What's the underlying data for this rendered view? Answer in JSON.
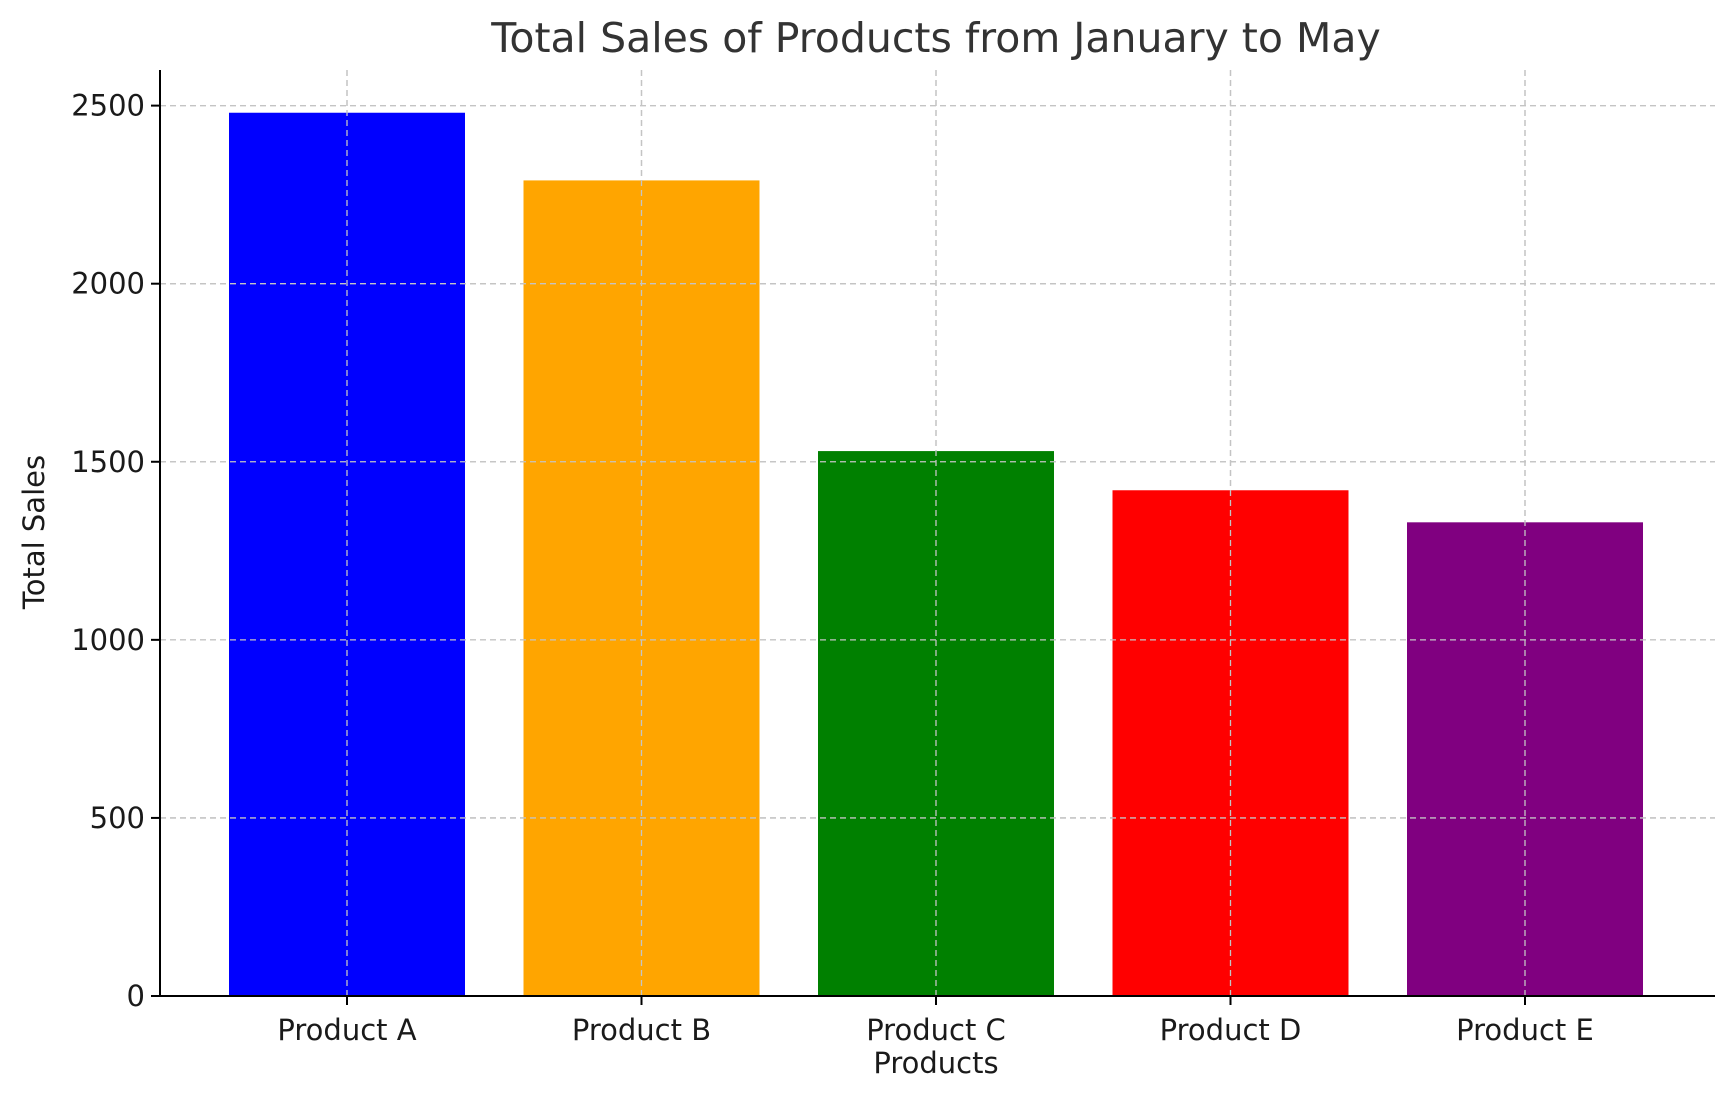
{
  "chart_data": {
    "type": "bar",
    "title": "Total Sales of Products from January to May",
    "xlabel": "Products",
    "ylabel": "Total Sales",
    "categories": [
      "Product A",
      "Product B",
      "Product C",
      "Product D",
      "Product E"
    ],
    "values": [
      2480,
      2290,
      1530,
      1420,
      1330
    ],
    "colors": [
      "#0000ff",
      "#ffa500",
      "#008000",
      "#ff0000",
      "#800080"
    ],
    "ylim": [
      0,
      2600
    ],
    "yticks": [
      0,
      500,
      1000,
      1500,
      2000,
      2500
    ],
    "grid": true,
    "legend": "none"
  }
}
